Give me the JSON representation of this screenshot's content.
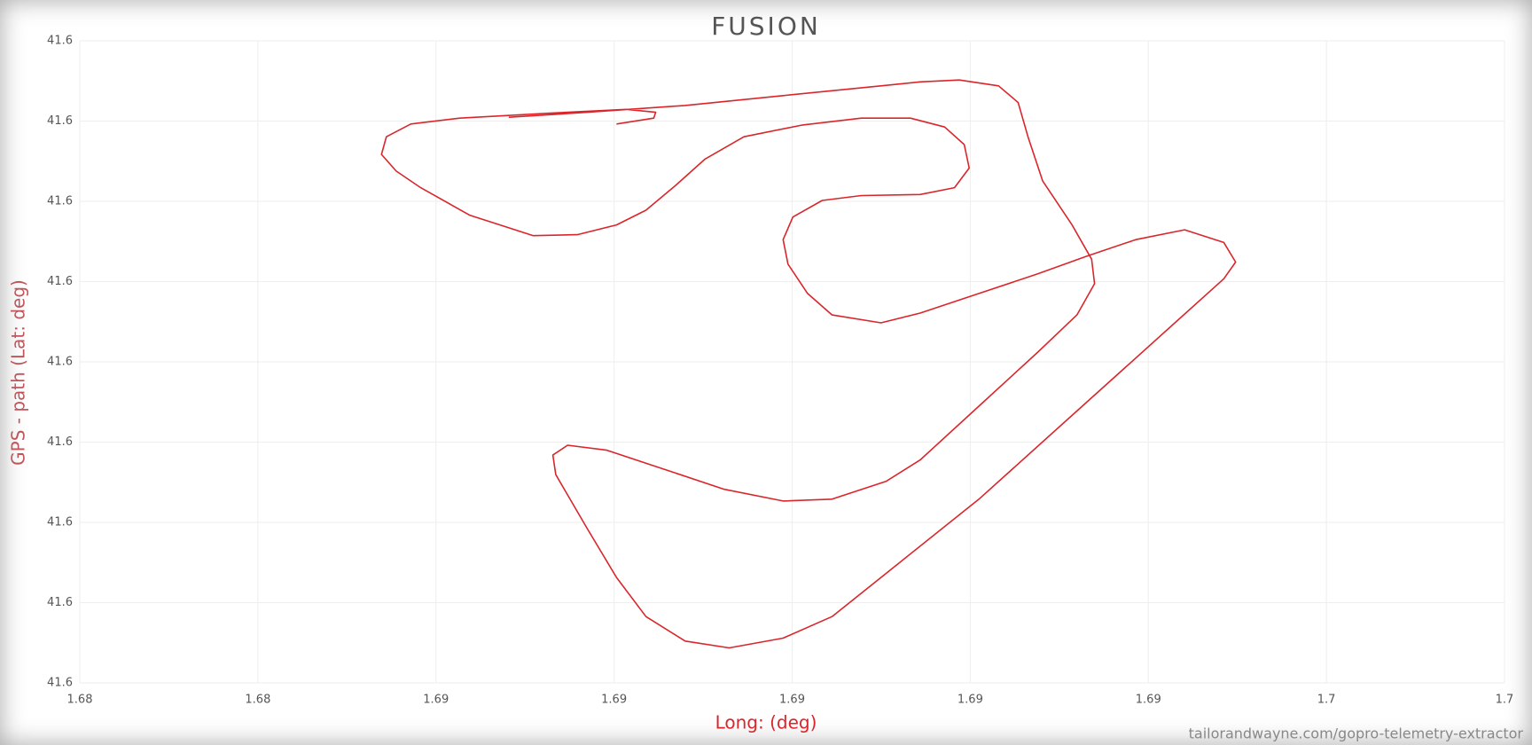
{
  "chart_data": {
    "type": "line",
    "title": "FUSION",
    "xlabel": "Long: (deg)",
    "ylabel": "GPS - path (Lat: deg)",
    "source": "tailorandwayne.com/gopro-telemetry-extractor",
    "color": "#d9262b",
    "grid": true,
    "xlim": [
      1.682,
      1.698
    ],
    "ylim": [
      41.57,
      41.578
    ],
    "xticks": [
      {
        "value": 1.682,
        "label": "1.68"
      },
      {
        "value": 1.684,
        "label": "1.68"
      },
      {
        "value": 1.686,
        "label": "1.69"
      },
      {
        "value": 1.688,
        "label": "1.69"
      },
      {
        "value": 1.69,
        "label": "1.69"
      },
      {
        "value": 1.692,
        "label": "1.69"
      },
      {
        "value": 1.694,
        "label": "1.69"
      },
      {
        "value": 1.696,
        "label": "1.7"
      },
      {
        "value": 1.698,
        "label": "1.7"
      }
    ],
    "yticks": [
      {
        "value": 41.57,
        "label": "41.6"
      },
      {
        "value": 41.571,
        "label": "41.6"
      },
      {
        "value": 41.572,
        "label": "41.6"
      },
      {
        "value": 41.573,
        "label": "41.6"
      },
      {
        "value": 41.574,
        "label": "41.6"
      },
      {
        "value": 41.575,
        "label": "41.6"
      },
      {
        "value": 41.576,
        "label": "41.6"
      },
      {
        "value": 41.577,
        "label": "41.6"
      },
      {
        "value": 41.578,
        "label": "41.6"
      }
    ],
    "x": [
      1.688028,
      1.688446,
      1.688468,
      1.688138,
      1.687258,
      1.686268,
      1.685718,
      1.685443,
      1.685388,
      1.685553,
      1.685828,
      1.686378,
      1.687093,
      1.687588,
      1.688028,
      1.688358,
      1.688688,
      1.689018,
      1.689458,
      1.690118,
      1.690778,
      1.691328,
      1.691713,
      1.691933,
      1.691988,
      1.691823,
      1.691438,
      1.690778,
      1.690338,
      1.690008,
      1.689898,
      1.689953,
      1.690173,
      1.690448,
      1.690998,
      1.691438,
      1.692098,
      1.692758,
      1.693308,
      1.693858,
      1.694408,
      1.694848,
      1.69498,
      1.694848,
      1.694298,
      1.693198,
      1.692098,
      1.690998,
      1.690448,
      1.689898,
      1.689293,
      1.688798,
      1.688358,
      1.688028,
      1.687698,
      1.687346,
      1.687313,
      1.687478,
      1.687918,
      1.688578,
      1.689238,
      1.689898,
      1.690448,
      1.691053,
      1.691438,
      1.692098,
      1.692758,
      1.693198,
      1.693396,
      1.693363,
      1.693143,
      1.692813,
      1.692648,
      1.692538,
      1.692318,
      1.691878,
      1.691438,
      1.690998,
      1.689898,
      1.688798,
      1.687698,
      1.686818
    ],
    "values": [
      41.576963,
      41.577036,
      41.577109,
      41.577146,
      41.577097,
      41.577036,
      41.576963,
      41.576804,
      41.576585,
      41.576377,
      41.57617,
      41.575828,
      41.575572,
      41.575584,
      41.575706,
      41.575889,
      41.576194,
      41.576524,
      41.576804,
      41.576951,
      41.577036,
      41.577036,
      41.576926,
      41.576707,
      41.576414,
      41.57617,
      41.576085,
      41.576072,
      41.576011,
      41.575804,
      41.575523,
      41.575218,
      41.574852,
      41.574584,
      41.574486,
      41.574608,
      41.574852,
      41.575096,
      41.575316,
      41.575523,
      41.575645,
      41.575487,
      41.575243,
      41.575035,
      41.574486,
      41.573388,
      41.57229,
      41.571314,
      41.570826,
      41.570558,
      41.570436,
      41.570521,
      41.570826,
      41.571314,
      41.571924,
      41.572595,
      41.572839,
      41.572961,
      41.5729,
      41.572656,
      41.572412,
      41.572266,
      41.57229,
      41.57251,
      41.572778,
      41.573449,
      41.57412,
      41.574584,
      41.574974,
      41.575279,
      41.575706,
      41.576255,
      41.576804,
      41.577231,
      41.577439,
      41.577512,
      41.577488,
      41.577439,
      41.577317,
      41.577195,
      41.577109,
      41.577048
    ]
  }
}
